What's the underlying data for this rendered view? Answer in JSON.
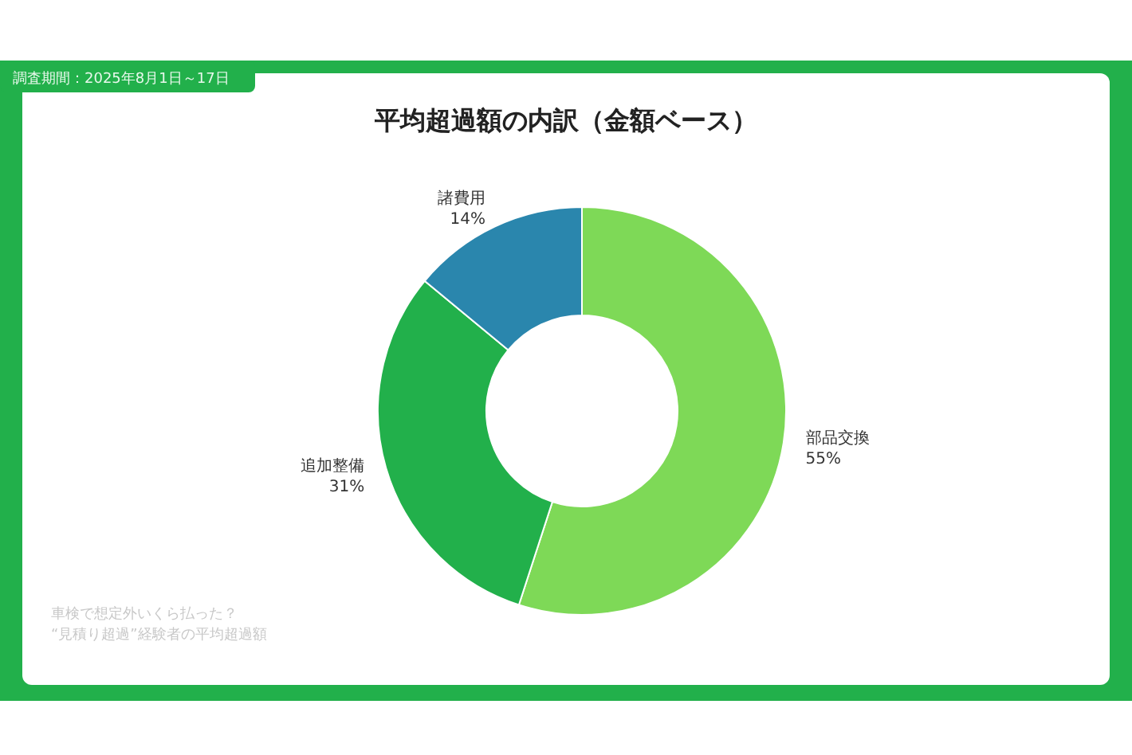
{
  "chart_data": {
    "type": "donut",
    "title": "平均超過額の内訳（金額ベース）",
    "categories": [
      "部品交換",
      "追加整備",
      "諸費用"
    ],
    "values": [
      55,
      31,
      14
    ],
    "colors": [
      "#7ed957",
      "#22b04b",
      "#2a86ad"
    ],
    "value_labels": [
      "55%",
      "31%",
      "14%"
    ],
    "annotations": [
      "調査期間：2025年8月1日～17日",
      "車検で想定外いくら払った？",
      "“見積り超過”経験者の平均超過額"
    ]
  }
}
